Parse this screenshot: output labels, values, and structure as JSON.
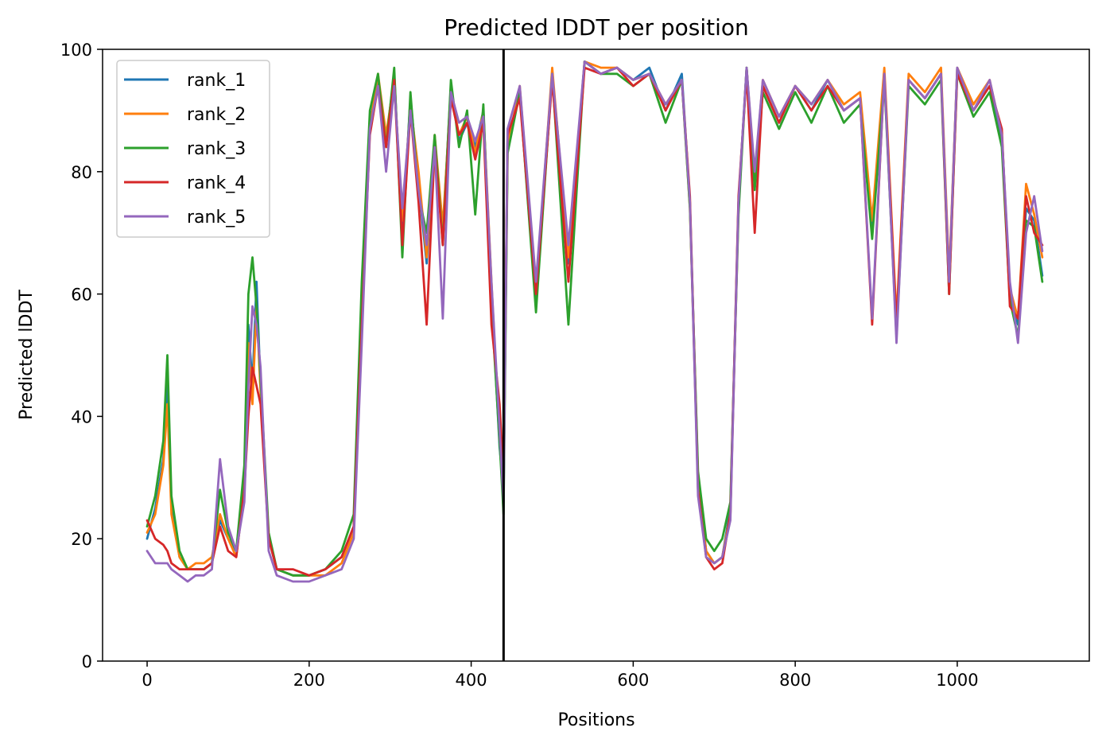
{
  "chart_data": {
    "type": "line",
    "title": "Predicted lDDT per position",
    "xlabel": "Positions",
    "ylabel": "Predicted lDDT",
    "xlim": [
      -55,
      1163
    ],
    "ylim": [
      0,
      100
    ],
    "xticks": [
      0,
      200,
      400,
      600,
      800,
      1000
    ],
    "yticks": [
      0,
      20,
      40,
      60,
      80,
      100
    ],
    "grid": false,
    "legend_position": "upper-left",
    "vline": {
      "x": 440,
      "color": "#000000"
    },
    "series": [
      {
        "name": "rank_1",
        "color": "#1f77b4",
        "x": [
          0,
          10,
          20,
          25,
          30,
          40,
          50,
          60,
          70,
          80,
          90,
          100,
          110,
          120,
          125,
          130,
          135,
          140,
          150,
          160,
          180,
          200,
          220,
          240,
          255,
          265,
          275,
          285,
          295,
          305,
          315,
          325,
          335,
          345,
          355,
          365,
          375,
          385,
          395,
          405,
          415,
          425,
          435,
          440,
          445,
          460,
          480,
          500,
          520,
          540,
          560,
          580,
          600,
          620,
          640,
          660,
          670,
          680,
          690,
          700,
          710,
          720,
          730,
          740,
          750,
          760,
          780,
          800,
          820,
          840,
          860,
          880,
          895,
          910,
          925,
          940,
          960,
          980,
          990,
          1000,
          1020,
          1040,
          1055,
          1065,
          1075,
          1085,
          1095,
          1105
        ],
        "y": [
          20,
          25,
          33,
          45,
          25,
          17,
          15,
          15,
          15,
          16,
          23,
          20,
          18,
          30,
          55,
          45,
          62,
          45,
          20,
          15,
          14,
          14,
          15,
          17,
          22,
          60,
          88,
          95,
          85,
          96,
          70,
          92,
          78,
          65,
          85,
          70,
          94,
          85,
          88,
          84,
          90,
          60,
          35,
          28,
          85,
          93,
          58,
          96,
          65,
          98,
          96,
          97,
          95,
          97,
          90,
          96,
          75,
          30,
          18,
          16,
          17,
          25,
          75,
          97,
          78,
          94,
          88,
          94,
          90,
          95,
          90,
          92,
          70,
          96,
          55,
          95,
          92,
          96,
          62,
          97,
          90,
          94,
          85,
          60,
          55,
          74,
          72,
          63
        ]
      },
      {
        "name": "rank_2",
        "color": "#ff7f0e",
        "x": [
          0,
          10,
          20,
          25,
          30,
          40,
          50,
          60,
          70,
          80,
          90,
          100,
          110,
          120,
          125,
          130,
          135,
          140,
          150,
          160,
          180,
          200,
          220,
          240,
          255,
          265,
          275,
          285,
          295,
          305,
          315,
          325,
          335,
          345,
          355,
          365,
          375,
          385,
          395,
          405,
          415,
          425,
          435,
          440,
          445,
          460,
          480,
          500,
          520,
          540,
          560,
          580,
          600,
          620,
          640,
          660,
          670,
          680,
          690,
          700,
          710,
          720,
          730,
          740,
          750,
          760,
          780,
          800,
          820,
          840,
          860,
          880,
          895,
          910,
          925,
          940,
          960,
          980,
          990,
          1000,
          1020,
          1040,
          1055,
          1065,
          1075,
          1085,
          1095,
          1105
        ],
        "y": [
          21,
          24,
          32,
          42,
          24,
          17,
          15,
          16,
          16,
          17,
          24,
          20,
          17,
          28,
          52,
          42,
          58,
          44,
          20,
          15,
          14,
          14,
          14,
          16,
          21,
          58,
          87,
          96,
          86,
          95,
          72,
          91,
          80,
          66,
          86,
          71,
          93,
          86,
          89,
          83,
          90,
          62,
          36,
          28,
          84,
          94,
          60,
          97,
          66,
          98,
          97,
          97,
          95,
          96,
          91,
          95,
          74,
          29,
          18,
          16,
          17,
          24,
          74,
          97,
          79,
          95,
          89,
          94,
          91,
          95,
          91,
          93,
          72,
          97,
          56,
          96,
          93,
          97,
          63,
          97,
          91,
          95,
          86,
          61,
          56,
          78,
          73,
          66
        ]
      },
      {
        "name": "rank_3",
        "color": "#2ca02c",
        "x": [
          0,
          10,
          20,
          25,
          30,
          40,
          50,
          60,
          70,
          80,
          90,
          100,
          110,
          120,
          125,
          130,
          135,
          140,
          150,
          160,
          180,
          200,
          220,
          240,
          255,
          265,
          275,
          285,
          295,
          305,
          315,
          325,
          335,
          345,
          355,
          365,
          375,
          385,
          395,
          405,
          415,
          425,
          435,
          440,
          445,
          460,
          480,
          500,
          520,
          540,
          560,
          580,
          600,
          620,
          640,
          660,
          670,
          680,
          690,
          700,
          710,
          720,
          730,
          740,
          750,
          760,
          780,
          800,
          820,
          840,
          860,
          880,
          895,
          910,
          925,
          940,
          960,
          980,
          990,
          1000,
          1020,
          1040,
          1055,
          1065,
          1075,
          1085,
          1095,
          1105
        ],
        "y": [
          22,
          27,
          36,
          50,
          27,
          18,
          15,
          15,
          15,
          16,
          28,
          21,
          18,
          32,
          60,
          66,
          58,
          46,
          21,
          15,
          14,
          14,
          15,
          18,
          24,
          62,
          90,
          96,
          84,
          97,
          66,
          93,
          76,
          70,
          86,
          68,
          95,
          84,
          90,
          73,
          91,
          58,
          36,
          24,
          83,
          93,
          57,
          96,
          55,
          98,
          96,
          96,
          94,
          96,
          88,
          95,
          74,
          31,
          20,
          18,
          20,
          26,
          73,
          97,
          77,
          93,
          87,
          93,
          88,
          94,
          88,
          91,
          69,
          95,
          53,
          94,
          91,
          95,
          60,
          96,
          89,
          93,
          84,
          59,
          53,
          72,
          71,
          62
        ]
      },
      {
        "name": "rank_4",
        "color": "#d62728",
        "x": [
          0,
          10,
          20,
          25,
          30,
          40,
          50,
          60,
          70,
          80,
          90,
          100,
          110,
          120,
          125,
          130,
          135,
          140,
          150,
          160,
          180,
          200,
          220,
          240,
          255,
          265,
          275,
          285,
          295,
          305,
          315,
          325,
          335,
          345,
          355,
          365,
          375,
          385,
          395,
          405,
          415,
          425,
          435,
          440,
          445,
          460,
          480,
          500,
          520,
          540,
          560,
          580,
          600,
          620,
          640,
          660,
          670,
          680,
          690,
          700,
          710,
          720,
          730,
          740,
          750,
          760,
          780,
          800,
          820,
          840,
          860,
          880,
          895,
          910,
          925,
          940,
          960,
          980,
          990,
          1000,
          1020,
          1040,
          1055,
          1065,
          1075,
          1085,
          1095,
          1105
        ],
        "y": [
          23,
          20,
          19,
          18,
          16,
          15,
          15,
          15,
          15,
          16,
          22,
          18,
          17,
          28,
          40,
          48,
          45,
          42,
          20,
          15,
          15,
          14,
          15,
          17,
          22,
          55,
          86,
          94,
          84,
          95,
          68,
          90,
          75,
          55,
          84,
          68,
          92,
          86,
          88,
          82,
          88,
          55,
          42,
          30,
          86,
          92,
          60,
          95,
          62,
          97,
          96,
          97,
          94,
          96,
          90,
          95,
          76,
          28,
          17,
          15,
          16,
          24,
          76,
          96,
          70,
          94,
          88,
          94,
          90,
          94,
          90,
          92,
          55,
          96,
          55,
          95,
          92,
          96,
          60,
          96,
          90,
          94,
          87,
          58,
          56,
          76,
          70,
          68
        ]
      },
      {
        "name": "rank_5",
        "color": "#9467bd",
        "x": [
          0,
          10,
          20,
          25,
          30,
          40,
          50,
          60,
          70,
          80,
          90,
          100,
          110,
          120,
          125,
          130,
          135,
          140,
          150,
          160,
          180,
          200,
          220,
          240,
          255,
          265,
          275,
          285,
          295,
          305,
          315,
          325,
          335,
          345,
          355,
          365,
          375,
          385,
          395,
          405,
          415,
          425,
          435,
          440,
          445,
          460,
          480,
          500,
          520,
          540,
          560,
          580,
          600,
          620,
          640,
          660,
          670,
          680,
          690,
          700,
          710,
          720,
          730,
          740,
          750,
          760,
          780,
          800,
          820,
          840,
          860,
          880,
          895,
          910,
          925,
          940,
          960,
          980,
          990,
          1000,
          1020,
          1040,
          1055,
          1065,
          1075,
          1085,
          1095,
          1105
        ],
        "y": [
          18,
          16,
          16,
          16,
          15,
          14,
          13,
          14,
          14,
          15,
          33,
          22,
          18,
          26,
          45,
          58,
          55,
          48,
          18,
          14,
          13,
          13,
          14,
          15,
          20,
          52,
          87,
          94,
          80,
          94,
          74,
          90,
          77,
          68,
          84,
          56,
          93,
          88,
          89,
          85,
          89,
          62,
          38,
          26,
          87,
          94,
          62,
          96,
          68,
          98,
          96,
          97,
          95,
          96,
          91,
          95,
          75,
          27,
          17,
          16,
          17,
          23,
          75,
          97,
          80,
          95,
          89,
          94,
          91,
          95,
          90,
          92,
          56,
          96,
          52,
          95,
          92,
          96,
          62,
          97,
          90,
          95,
          86,
          62,
          52,
          70,
          76,
          67
        ]
      }
    ]
  }
}
